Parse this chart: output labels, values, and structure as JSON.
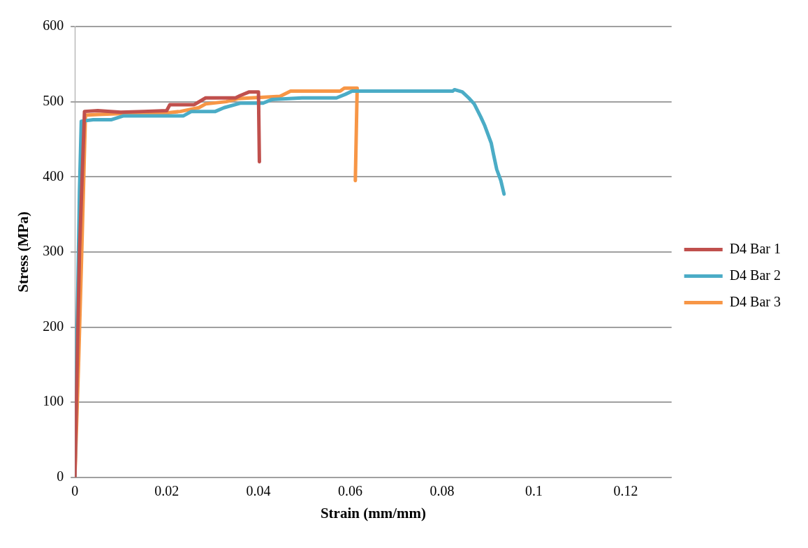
{
  "chart_data": {
    "type": "line",
    "xlabel": "Strain (mm/mm)",
    "ylabel": "Stress (MPa)",
    "xlim": [
      0,
      0.13
    ],
    "xticks": [
      0,
      0.02,
      0.04,
      0.06,
      0.08,
      0.1,
      0.12
    ],
    "ylim": [
      0,
      600
    ],
    "yticks": [
      0,
      100,
      200,
      300,
      400,
      500,
      600
    ],
    "grid": "y",
    "legend": "right",
    "marker": "none",
    "line_style": "solid",
    "series": [
      {
        "name": "D4 Bar 1",
        "color": "#c0504d",
        "x": [
          0,
          0.001,
          0.0021,
          0.005,
          0.01,
          0.015,
          0.02,
          0.0207,
          0.026,
          0.0285,
          0.035,
          0.036,
          0.038,
          0.04,
          0.0402
        ],
        "values": [
          0,
          300,
          487,
          488,
          486,
          487,
          488,
          496,
          496,
          505,
          505,
          508,
          513,
          513,
          420
        ]
      },
      {
        "name": "D4 Bar 2",
        "color": "#4bacc6",
        "x": [
          0,
          0.0005,
          0.001,
          0.0014,
          0.004,
          0.008,
          0.0105,
          0.0236,
          0.0254,
          0.0306,
          0.0325,
          0.036,
          0.041,
          0.043,
          0.0495,
          0.057,
          0.059,
          0.0604,
          0.0823,
          0.0827,
          0.0844,
          0.0858,
          0.087,
          0.0884,
          0.0893,
          0.0907,
          0.0912,
          0.0919,
          0.0928,
          0.0935
        ],
        "values": [
          0,
          200,
          380,
          474,
          476,
          476,
          481,
          481,
          487,
          487,
          492,
          498,
          498,
          503,
          505,
          505,
          510,
          514,
          514,
          516,
          513,
          505,
          497,
          480,
          468,
          445,
          430,
          410,
          395,
          377
        ]
      },
      {
        "name": "D4 Bar 3",
        "color": "#f79646",
        "x": [
          0,
          0.0008,
          0.0015,
          0.0023,
          0.005,
          0.01,
          0.02,
          0.023,
          0.027,
          0.0285,
          0.033,
          0.0355,
          0.0447,
          0.047,
          0.0578,
          0.0587,
          0.0615,
          0.0611
        ],
        "values": [
          0,
          150,
          300,
          482,
          483,
          484,
          485,
          487,
          492,
          497,
          500,
          504,
          507,
          514,
          514,
          518,
          518,
          395
        ]
      }
    ]
  }
}
